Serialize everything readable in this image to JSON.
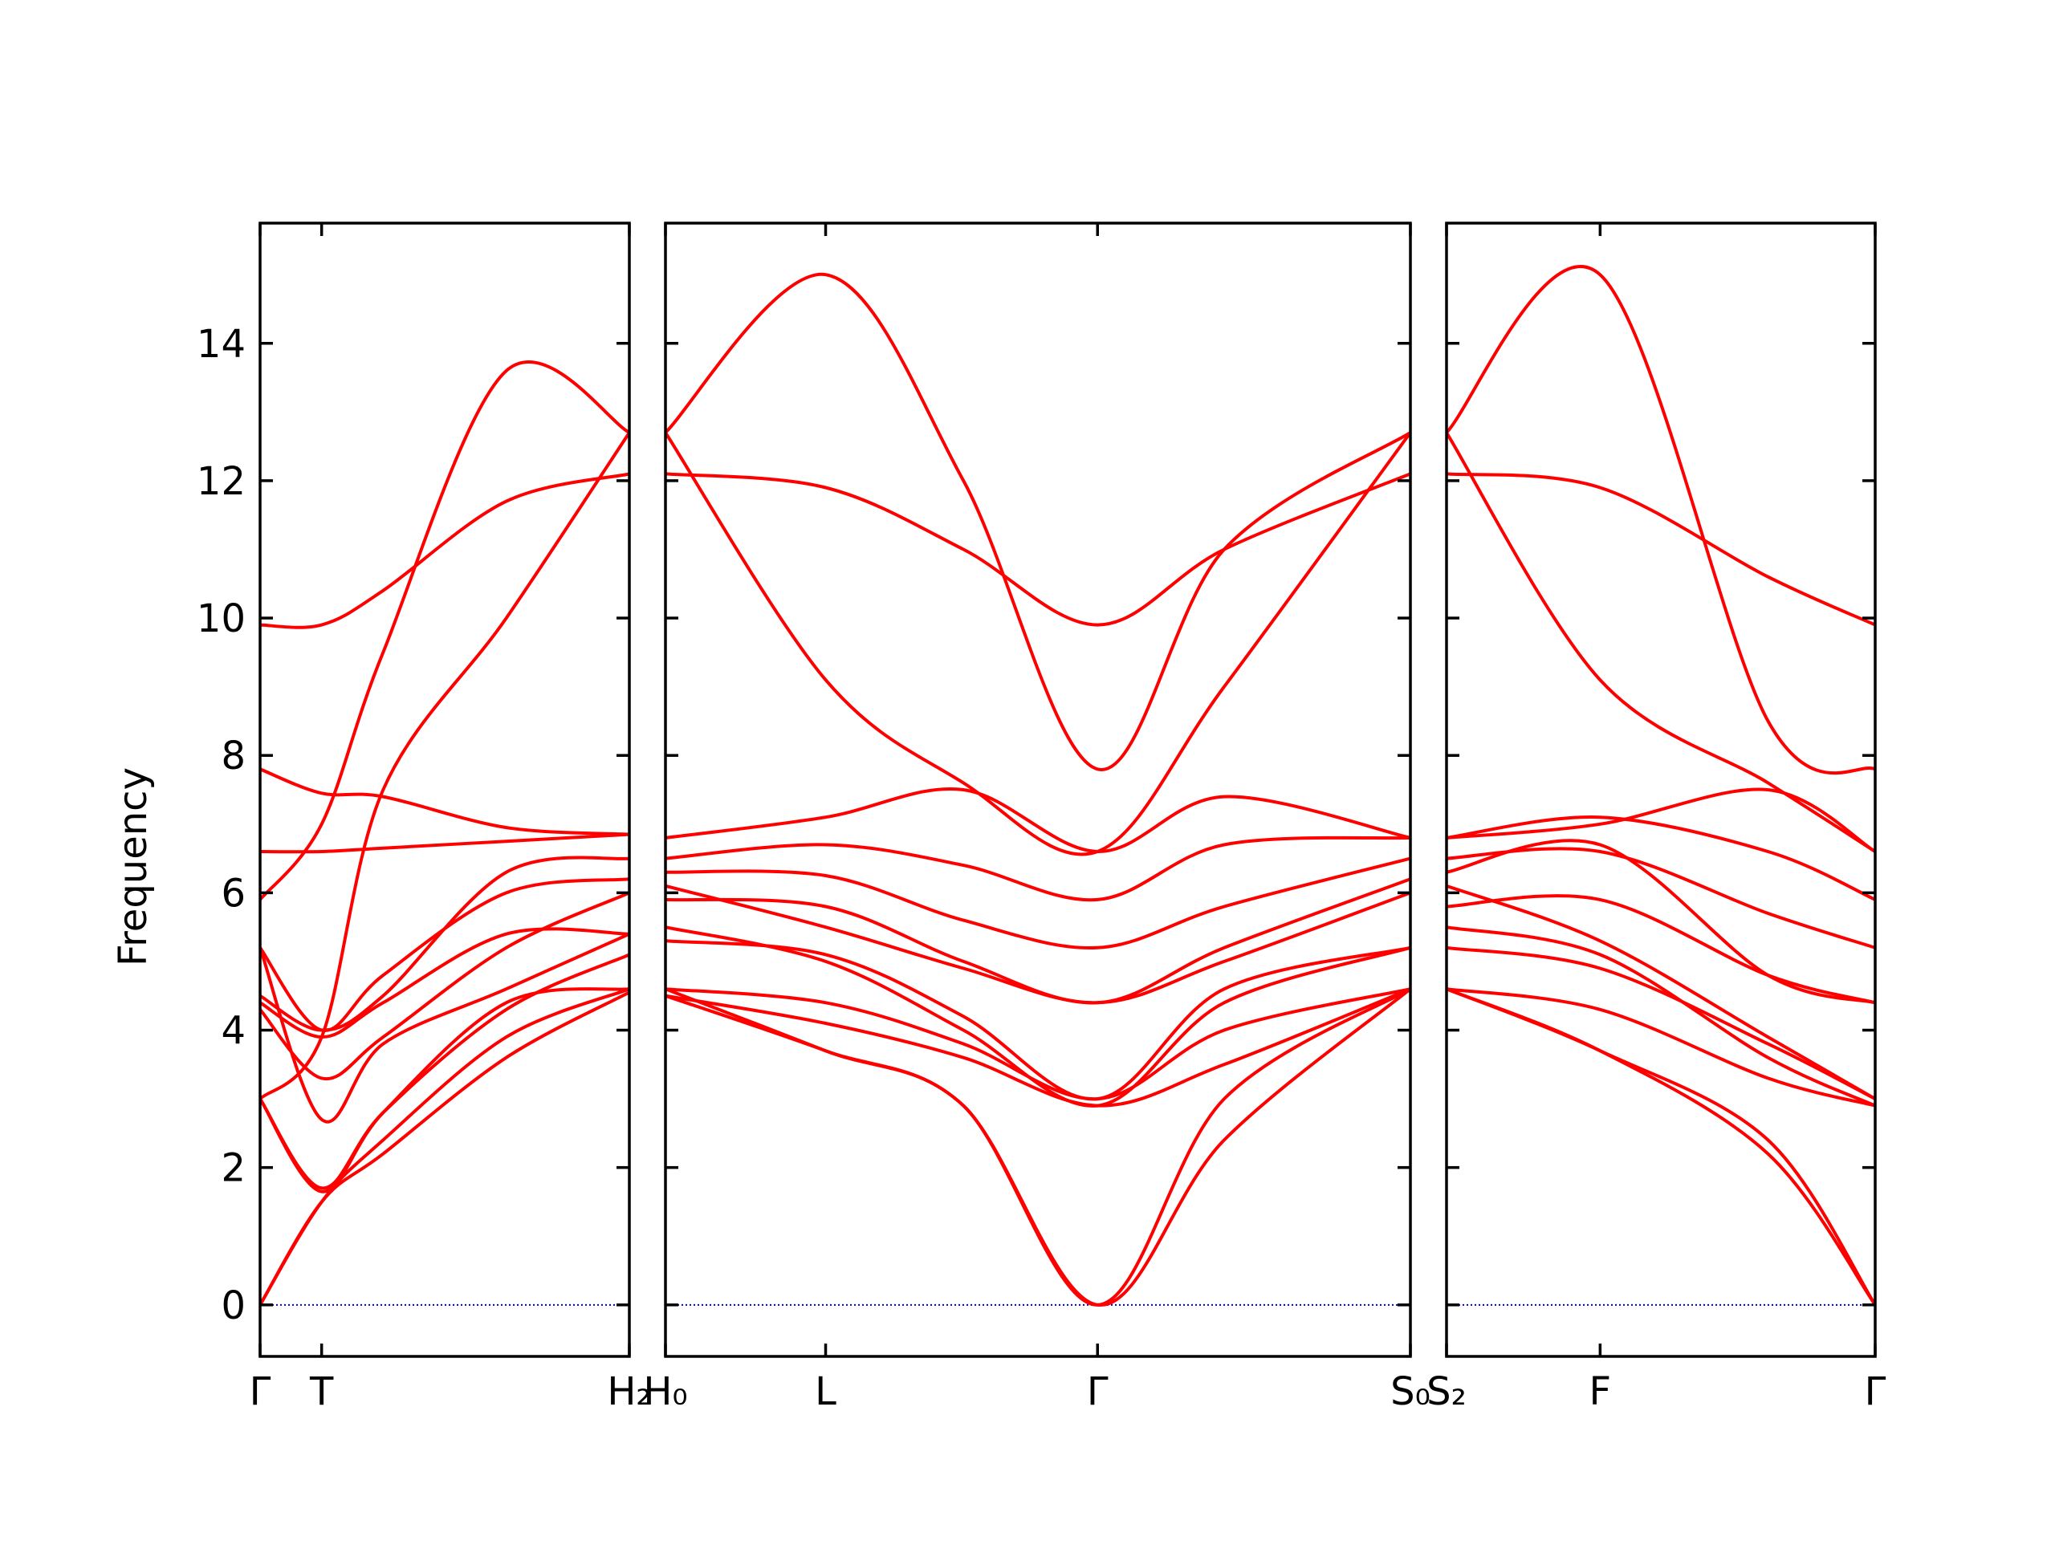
{
  "chart_data": {
    "type": "line",
    "ylabel": "Frequency",
    "ylim": [
      -0.75,
      15.75
    ],
    "yticks": [
      0,
      2,
      4,
      6,
      8,
      10,
      12,
      14
    ],
    "zero_line_color": "#0000cc",
    "band_color": "#ff0000",
    "panels": [
      {
        "id": "p1",
        "xlim": [
          0,
          6
        ],
        "ticks": [
          {
            "x": 0,
            "label": "Γ"
          },
          {
            "x": 1,
            "label": "T"
          },
          {
            "x": 6,
            "label": "H₂"
          }
        ],
        "series": [
          {
            "x": [
              0,
              1,
              2,
              4,
              6
            ],
            "y": [
              0,
              1.5,
              2.2,
              3.6,
              4.55
            ]
          },
          {
            "x": [
              0,
              1,
              2,
              4,
              6
            ],
            "y": [
              0,
              1.5,
              2.4,
              3.9,
              4.6
            ]
          },
          {
            "x": [
              0,
              1,
              2,
              4,
              6
            ],
            "y": [
              3.0,
              1.65,
              2.8,
              4.4,
              4.6
            ]
          },
          {
            "x": [
              0,
              1,
              2,
              4,
              6
            ],
            "y": [
              3.0,
              1.7,
              2.8,
              4.3,
              5.1
            ]
          },
          {
            "x": [
              0,
              1,
              2,
              4,
              6
            ],
            "y": [
              5.2,
              2.7,
              3.8,
              4.6,
              5.4
            ]
          },
          {
            "x": [
              0,
              1,
              2,
              4,
              6
            ],
            "y": [
              4.3,
              3.3,
              3.9,
              5.2,
              6.0
            ]
          },
          {
            "x": [
              0,
              1,
              2,
              4,
              6
            ],
            "y": [
              4.4,
              3.9,
              4.4,
              5.4,
              5.4
            ]
          },
          {
            "x": [
              0,
              1,
              2,
              4,
              6
            ],
            "y": [
              5.2,
              4.0,
              4.8,
              6.0,
              6.2
            ]
          },
          {
            "x": [
              0,
              1,
              2,
              4,
              6
            ],
            "y": [
              6.6,
              6.6,
              6.65,
              6.75,
              6.85
            ]
          },
          {
            "x": [
              0,
              1,
              2,
              4,
              6
            ],
            "y": [
              7.8,
              7.45,
              7.4,
              6.95,
              6.85
            ]
          },
          {
            "x": [
              0,
              1,
              2,
              4,
              6
            ],
            "y": [
              5.9,
              7.0,
              9.5,
              13.6,
              12.7
            ]
          },
          {
            "x": [
              0,
              1,
              2,
              4,
              6
            ],
            "y": [
              9.9,
              9.9,
              10.4,
              11.7,
              12.1
            ]
          },
          {
            "x": [
              0,
              1,
              2,
              4,
              6
            ],
            "y": [
              4.5,
              4.0,
              4.5,
              6.3,
              6.5
            ]
          },
          {
            "x": [
              0,
              1,
              2,
              4,
              6
            ],
            "y": [
              3.0,
              3.9,
              7.5,
              10.0,
              12.7
            ]
          }
        ]
      },
      {
        "id": "p2",
        "xlim": [
          0,
          10
        ],
        "ticks": [
          {
            "x": 0,
            "label": "H₀"
          },
          {
            "x": 2.15,
            "label": "L"
          },
          {
            "x": 5.8,
            "label": "Γ"
          },
          {
            "x": 10,
            "label": "S₀"
          }
        ],
        "series": [
          {
            "x": [
              0,
              2.15,
              4,
              5.8,
              7.5,
              10
            ],
            "y": [
              12.7,
              15.0,
              12.0,
              7.8,
              11.0,
              12.7
            ]
          },
          {
            "x": [
              0,
              2.15,
              4,
              5.8,
              7.5,
              10
            ],
            "y": [
              12.1,
              11.9,
              11.0,
              9.9,
              11.0,
              12.1
            ]
          },
          {
            "x": [
              0,
              2.15,
              4,
              5.8,
              7.5,
              10
            ],
            "y": [
              12.7,
              9.1,
              7.6,
              6.6,
              9.0,
              12.7
            ]
          },
          {
            "x": [
              0,
              2.15,
              4,
              5.8,
              7.5,
              10
            ],
            "y": [
              6.8,
              7.1,
              7.5,
              6.6,
              7.4,
              6.8
            ]
          },
          {
            "x": [
              0,
              2.15,
              4,
              5.8,
              7.5,
              10
            ],
            "y": [
              6.5,
              6.7,
              6.4,
              5.9,
              6.7,
              6.8
            ]
          },
          {
            "x": [
              0,
              2.15,
              4,
              5.8,
              7.5,
              10
            ],
            "y": [
              6.3,
              6.25,
              5.6,
              5.2,
              5.8,
              6.5
            ]
          },
          {
            "x": [
              0,
              2.15,
              4,
              5.8,
              7.5,
              10
            ],
            "y": [
              5.9,
              5.8,
              5.0,
              4.4,
              5.2,
              6.2
            ]
          },
          {
            "x": [
              0,
              2.15,
              4,
              5.8,
              7.5,
              10
            ],
            "y": [
              6.1,
              5.5,
              4.9,
              4.4,
              5.0,
              6.0
            ]
          },
          {
            "x": [
              0,
              2.15,
              4,
              5.8,
              7.5,
              10
            ],
            "y": [
              5.3,
              5.1,
              4.2,
              3.0,
              4.6,
              5.2
            ]
          },
          {
            "x": [
              0,
              2.15,
              4,
              5.8,
              7.5,
              10
            ],
            "y": [
              5.5,
              5.0,
              4.0,
              2.9,
              4.4,
              5.2
            ]
          },
          {
            "x": [
              0,
              2.15,
              4,
              5.8,
              7.5,
              10
            ],
            "y": [
              4.6,
              4.4,
              3.8,
              3.0,
              4.0,
              4.6
            ]
          },
          {
            "x": [
              0,
              2.15,
              4,
              5.8,
              7.5,
              10
            ],
            "y": [
              4.5,
              4.1,
              3.6,
              2.9,
              3.5,
              4.6
            ]
          },
          {
            "x": [
              0,
              2.15,
              4,
              5.8,
              7.5,
              10
            ],
            "y": [
              4.6,
              3.7,
              2.9,
              0,
              3.0,
              4.6
            ]
          },
          {
            "x": [
              0,
              2.15,
              4,
              5.8,
              7.5,
              10
            ],
            "y": [
              4.5,
              3.7,
              2.9,
              0,
              2.4,
              4.6
            ]
          }
        ]
      },
      {
        "id": "p3",
        "xlim": [
          0,
          6
        ],
        "ticks": [
          {
            "x": 0,
            "label": "S₂"
          },
          {
            "x": 2.15,
            "label": "F"
          },
          {
            "x": 6,
            "label": "Γ"
          }
        ],
        "series": [
          {
            "x": [
              0,
              2.15,
              4.5,
              6
            ],
            "y": [
              12.7,
              15.0,
              8.5,
              7.8
            ]
          },
          {
            "x": [
              0,
              2.15,
              4.5,
              6
            ],
            "y": [
              12.1,
              11.9,
              10.6,
              9.9
            ]
          },
          {
            "x": [
              0,
              2.15,
              4.5,
              6
            ],
            "y": [
              12.7,
              9.1,
              7.6,
              6.6
            ]
          },
          {
            "x": [
              0,
              2.15,
              4.5,
              6
            ],
            "y": [
              6.8,
              7.0,
              7.5,
              6.6
            ]
          },
          {
            "x": [
              0,
              2.15,
              4.5,
              6
            ],
            "y": [
              6.8,
              7.1,
              6.6,
              5.9
            ]
          },
          {
            "x": [
              0,
              2.15,
              4.5,
              6
            ],
            "y": [
              6.5,
              6.6,
              5.7,
              5.2
            ]
          },
          {
            "x": [
              0,
              2.15,
              4.5,
              6
            ],
            "y": [
              6.3,
              6.7,
              4.8,
              4.4
            ]
          },
          {
            "x": [
              0,
              2.15,
              4.5,
              6
            ],
            "y": [
              5.8,
              5.9,
              4.8,
              4.4
            ]
          },
          {
            "x": [
              0,
              2.15,
              4.5,
              6
            ],
            "y": [
              6.1,
              5.3,
              3.9,
              3.0
            ]
          },
          {
            "x": [
              0,
              2.15,
              4.5,
              6
            ],
            "y": [
              5.5,
              5.1,
              3.6,
              2.9
            ]
          },
          {
            "x": [
              0,
              2.15,
              4.5,
              6
            ],
            "y": [
              5.2,
              4.9,
              3.8,
              3.0
            ]
          },
          {
            "x": [
              0,
              2.15,
              4.5,
              6
            ],
            "y": [
              4.6,
              4.3,
              3.3,
              2.9
            ]
          },
          {
            "x": [
              0,
              2.15,
              4.5,
              6
            ],
            "y": [
              4.6,
              3.7,
              2.4,
              0
            ]
          },
          {
            "x": [
              0,
              2.15,
              4.5,
              6
            ],
            "y": [
              4.6,
              3.7,
              2.2,
              0
            ]
          }
        ]
      }
    ]
  }
}
